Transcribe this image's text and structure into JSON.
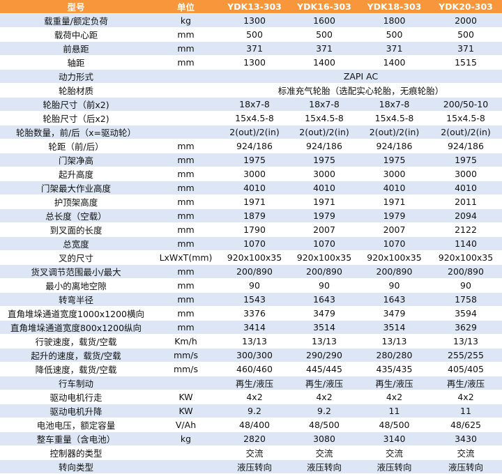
{
  "header": [
    "型号",
    "单位",
    "YDK13-303",
    "YDK16-303",
    "YDK18-303",
    "YDK20-303"
  ],
  "rows": [
    {
      "name": "载重量/额定负荷",
      "unit": "kg",
      "values": [
        "1300",
        "1600",
        "1800",
        "2000"
      ]
    },
    {
      "name": "载荷中心距",
      "unit": "mm",
      "values": [
        "500",
        "500",
        "500",
        "500"
      ]
    },
    {
      "name": "前悬距",
      "unit": "mm",
      "values": [
        "371",
        "371",
        "371",
        "371"
      ]
    },
    {
      "name": "轴距",
      "unit": "mm",
      "values": [
        "1300",
        "1400",
        "1400",
        "1515"
      ]
    },
    {
      "name": "动力形式",
      "unit": "",
      "span": "ZAPI AC"
    },
    {
      "name": "轮胎材质",
      "unit": "",
      "span": "标准充气轮胎（选配实心轮胎，无痕轮胎）"
    },
    {
      "name": "轮胎尺寸（前x2)",
      "unit": "",
      "values": [
        "18x7-8",
        "18x7-8",
        "18x7-8",
        "200/50-10"
      ]
    },
    {
      "name": "轮胎尺寸（后x2)",
      "unit": "",
      "values": [
        "15x4.5-8",
        "15x4.5-8",
        "15x4.5-8",
        "15x4.5-8"
      ]
    },
    {
      "name": "轮胎数量，前/后（x=驱动轮）",
      "unit": "",
      "values": [
        "2(out)/2(in)",
        "2(out)/2(in)",
        "2(out)/2(in)",
        "2(out)/2(in)"
      ]
    },
    {
      "name": "轮距（前/后）",
      "unit": "mm",
      "values": [
        "924/186",
        "924/186",
        "924/186",
        "924/186"
      ]
    },
    {
      "name": "门架净高",
      "unit": "mm",
      "values": [
        "1975",
        "1975",
        "1975",
        "1975"
      ]
    },
    {
      "name": "起升高度",
      "unit": "mm",
      "values": [
        "3000",
        "3000",
        "3000",
        "3000"
      ]
    },
    {
      "name": "门架最大作业高度",
      "unit": "mm",
      "values": [
        "4010",
        "4010",
        "4010",
        "4010"
      ]
    },
    {
      "name": "护顶架高度",
      "unit": "mm",
      "values": [
        "1971",
        "1971",
        "1971",
        "2011"
      ]
    },
    {
      "name": "总长度（空载）",
      "unit": "mm",
      "values": [
        "1879",
        "1979",
        "1979",
        "2094"
      ]
    },
    {
      "name": "到叉面的长度",
      "unit": "mm",
      "values": [
        "1790",
        "2007",
        "2007",
        "2122"
      ]
    },
    {
      "name": "总宽度",
      "unit": "mm",
      "values": [
        "1070",
        "1070",
        "1070",
        "1140"
      ]
    },
    {
      "name": "叉的尺寸",
      "unit": "LxWxT(mm)",
      "values": [
        "920x100x35",
        "920x100x35",
        "920x100x35",
        "920x100x35"
      ]
    },
    {
      "name": "货叉调节范围最小/最大",
      "unit": "mm",
      "values": [
        "200/890",
        "200/890",
        "200/890",
        "200/890"
      ]
    },
    {
      "name": "最小的离地空隙",
      "unit": "mm",
      "values": [
        "90",
        "90",
        "90",
        "90"
      ]
    },
    {
      "name": "转弯半径",
      "unit": "mm",
      "values": [
        "1543",
        "1643",
        "1643",
        "1758"
      ]
    },
    {
      "name": "直角堆垛通道宽度1000x1200横向",
      "unit": "mm",
      "values": [
        "3376",
        "3479",
        "3479",
        "3594"
      ]
    },
    {
      "name": "直角堆垛通道宽度800x1200纵向",
      "unit": "mm",
      "values": [
        "3414",
        "3514",
        "3514",
        "3629"
      ]
    },
    {
      "name": "行驶速度，载货/空载",
      "unit": "Km/h",
      "values": [
        "13/13",
        "13/13",
        "13/13",
        "13/13"
      ]
    },
    {
      "name": "起升的速度，载货/空载",
      "unit": "mm/s",
      "values": [
        "300/300",
        "290/290",
        "280/280",
        "255/255"
      ]
    },
    {
      "name": "降低速度，载货/空载",
      "unit": "mm/s",
      "values": [
        "460/460",
        "445/445",
        "435/435",
        "405/405"
      ]
    },
    {
      "name": "行车制动",
      "unit": "",
      "values": [
        "再生/液压",
        "再生/液压",
        "再生/液压",
        "再生/液压"
      ]
    },
    {
      "name": "驱动电机行走",
      "unit": "KW",
      "values": [
        "4x2",
        "4x2",
        "4x2",
        "4x2"
      ]
    },
    {
      "name": "驱动电机升降",
      "unit": "KW",
      "values": [
        "9.2",
        "9.2",
        "11",
        "11"
      ]
    },
    {
      "name": "电池电压，额定容量",
      "unit": "V/Ah",
      "values": [
        "48/400",
        "48/500",
        "48/500",
        "48/625"
      ]
    },
    {
      "name": "整车重量（含电池）",
      "unit": "kg",
      "values": [
        "2820",
        "3080",
        "3140",
        "3430"
      ]
    },
    {
      "name": "控制器的类型",
      "unit": "",
      "values": [
        "交流",
        "交流",
        "交流",
        "交流"
      ]
    },
    {
      "name": "转向类型",
      "unit": "",
      "values": [
        "液压转向",
        "液压转向",
        "液压转向",
        "液压转向"
      ]
    }
  ]
}
